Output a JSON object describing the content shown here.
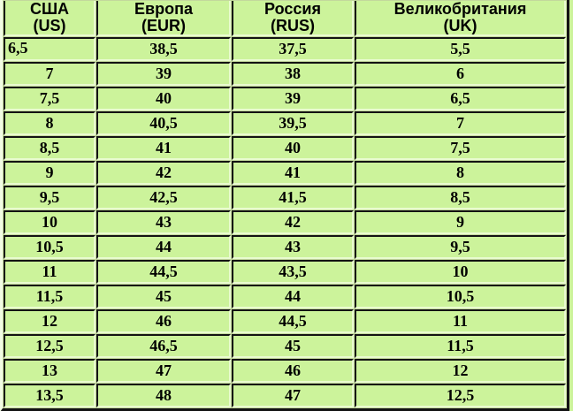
{
  "table": {
    "columns": [
      {
        "id": "us",
        "name": "США",
        "code": "(US)"
      },
      {
        "id": "eur",
        "name": "Европа",
        "code": "(EUR)"
      },
      {
        "id": "rus",
        "name": "Россия",
        "code": "(RUS)"
      },
      {
        "id": "uk",
        "name": "Великобритания",
        "code": "(UK)"
      }
    ],
    "rows": [
      [
        "6,5",
        "38,5",
        "37,5",
        "5,5"
      ],
      [
        "7",
        "39",
        "38",
        "6"
      ],
      [
        "7,5",
        "40",
        "39",
        "6,5"
      ],
      [
        "8",
        "40,5",
        "39,5",
        "7"
      ],
      [
        "8,5",
        "41",
        "40",
        "7,5"
      ],
      [
        "9",
        "42",
        "41",
        "8"
      ],
      [
        "9,5",
        "42,5",
        "41,5",
        "8,5"
      ],
      [
        "10",
        "43",
        "42",
        "9"
      ],
      [
        "10,5",
        "44",
        "43",
        "9,5"
      ],
      [
        "11",
        "44,5",
        "43,5",
        "10"
      ],
      [
        "11,5",
        "45",
        "44",
        "10,5"
      ],
      [
        "12",
        "46",
        "44,5",
        "11"
      ],
      [
        "12,5",
        "46,5",
        "45",
        "11,5"
      ],
      [
        "13",
        "47",
        "46",
        "12"
      ],
      [
        "13,5",
        "48",
        "47",
        "12,5"
      ]
    ]
  },
  "colors": {
    "cell_background": "#ccf39b",
    "border_dark": "#131313",
    "border_light": "#e9fbd0",
    "table_gap": "#c3d89c",
    "text": "#000000"
  }
}
